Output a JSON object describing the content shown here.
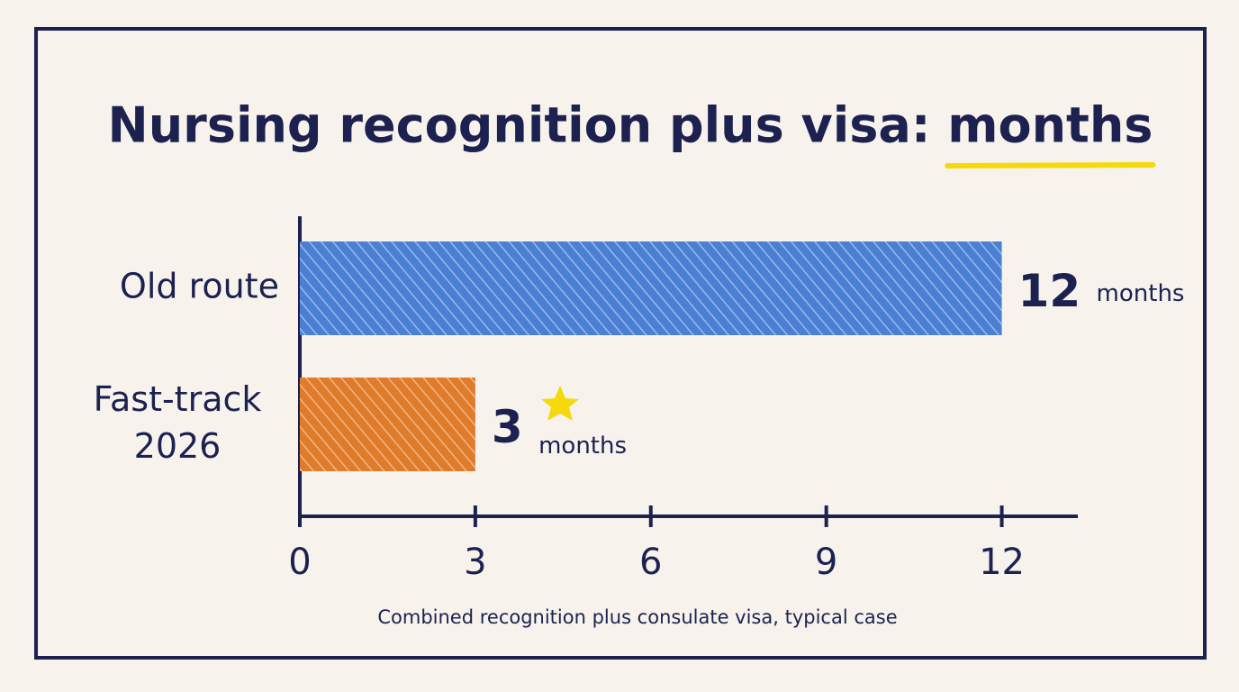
{
  "chart_data": {
    "type": "hbar",
    "title": "Nursing recognition plus visa: months",
    "x_label": "Combined recognition plus consulate visa, typical case",
    "categories": [
      "Old route",
      "Fast-track 2026"
    ],
    "values": [
      12,
      3
    ],
    "value_labels": [
      "12 months",
      "3 months"
    ],
    "colors": [
      "#4a7fd4",
      "#e07b2a"
    ],
    "xlim": [
      0,
      13.3
    ],
    "xticks": [
      0,
      3,
      6,
      9,
      12
    ]
  }
}
